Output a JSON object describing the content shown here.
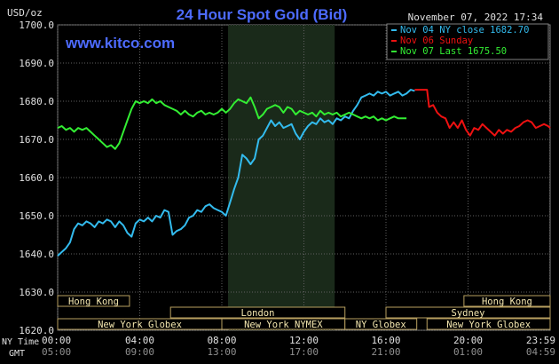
{
  "header": {
    "unit": "USD/oz",
    "title": "24 Hour Spot Gold (Bid)",
    "timestamp": "November 07, 2022 17:34",
    "site": "www.kitco.com"
  },
  "colors": {
    "background": "#000000",
    "title": "#4d6bff",
    "site": "#4d6bff",
    "grid": "#606060",
    "text": "#e0e0e0",
    "series_nov04": "#33bbee",
    "series_nov06": "#ee1111",
    "series_nov07": "#33ee33",
    "session_bar": "#f5e8b0",
    "session_border": "#b8a060",
    "nymex_shade": "#1a2a1a"
  },
  "legend": {
    "items": [
      {
        "label": "Nov 04 NY close 1682.70",
        "color": "#33bbee"
      },
      {
        "label": "Nov 06 Sunday",
        "color": "#ee1111"
      },
      {
        "label": "Nov 07 Last 1675.50",
        "color": "#33ee33"
      }
    ]
  },
  "sessions": [
    {
      "label": "Hong Kong",
      "start": 0.0,
      "end": 3.5,
      "row": 0
    },
    {
      "label": "London",
      "start": 5.5,
      "end": 14.0,
      "row": 1
    },
    {
      "label": "New York Globex",
      "start": 0.0,
      "end": 8.0,
      "row": 2
    },
    {
      "label": "New York NYMEX",
      "start": 8.0,
      "end": 14.0,
      "row": 2
    },
    {
      "label": "NY Globex",
      "start": 14.0,
      "end": 17.5,
      "row": 2
    },
    {
      "label": "Hong Kong",
      "start": 19.8,
      "end": 24.0,
      "row": 0
    },
    {
      "label": "Sydney",
      "start": 16.0,
      "end": 24.0,
      "row": 1
    },
    {
      "label": "New York Globex",
      "start": 18.0,
      "end": 24.0,
      "row": 2
    }
  ],
  "time_labels": {
    "ny_title": "NY Time",
    "gmt_title": "GMT"
  },
  "chart_data": {
    "type": "line",
    "title": "24 Hour Spot Gold (Bid)",
    "ylabel": "USD/oz",
    "ylim": [
      1620,
      1700
    ],
    "yticks": [
      "1700.0",
      "1690.0",
      "1680.0",
      "1670.0",
      "1660.0",
      "1650.0",
      "1640.0",
      "1630.0",
      "1620.0"
    ],
    "xlim": [
      0,
      24
    ],
    "xticks_ny": [
      "00:00",
      "04:00",
      "08:00",
      "12:00",
      "16:00",
      "20:00",
      "23:59"
    ],
    "xticks_gmt": [
      "05:00",
      "09:00",
      "13:00",
      "17:00",
      "21:00",
      "01:00",
      "04:59"
    ],
    "shaded_region": [
      8.3,
      13.5
    ],
    "grid": true,
    "legend_position": "top-right",
    "series": [
      {
        "name": "Nov 04 NY close 1682.70",
        "color": "#33bbee",
        "x": [
          0,
          0.2,
          0.4,
          0.6,
          0.8,
          1.0,
          1.2,
          1.4,
          1.6,
          1.8,
          2.0,
          2.2,
          2.4,
          2.6,
          2.8,
          3.0,
          3.2,
          3.4,
          3.6,
          3.8,
          4.0,
          4.2,
          4.4,
          4.6,
          4.8,
          5.0,
          5.2,
          5.4,
          5.6,
          5.8,
          6.0,
          6.2,
          6.4,
          6.6,
          6.8,
          7.0,
          7.2,
          7.4,
          7.6,
          7.8,
          8.0,
          8.2,
          8.4,
          8.6,
          8.8,
          9.0,
          9.2,
          9.4,
          9.6,
          9.8,
          10.0,
          10.2,
          10.4,
          10.6,
          10.8,
          11.0,
          11.2,
          11.4,
          11.6,
          11.8,
          12.0,
          12.2,
          12.4,
          12.6,
          12.8,
          13.0,
          13.2,
          13.4,
          13.6,
          13.8,
          14.0,
          14.2,
          14.4,
          14.6,
          14.8,
          15.0,
          15.2,
          15.4,
          15.6,
          15.8,
          16.0,
          16.2,
          16.4,
          16.6,
          16.8,
          17.0,
          17.2,
          17.4
        ],
        "values": [
          1639.5,
          1640.5,
          1641.5,
          1643.0,
          1646.5,
          1648.0,
          1647.5,
          1648.5,
          1648.0,
          1647.0,
          1648.5,
          1648.0,
          1649.0,
          1648.5,
          1647.0,
          1648.5,
          1647.5,
          1645.5,
          1644.5,
          1648.0,
          1649.0,
          1648.5,
          1649.5,
          1648.5,
          1650.0,
          1649.5,
          1651.5,
          1651.0,
          1645.0,
          1646.0,
          1646.5,
          1647.5,
          1649.5,
          1650.0,
          1651.5,
          1651.0,
          1652.5,
          1653.0,
          1652.0,
          1651.5,
          1651.0,
          1650.0,
          1653.5,
          1657.0,
          1660.0,
          1666.0,
          1665.0,
          1663.5,
          1665.0,
          1670.0,
          1671.0,
          1673.0,
          1675.0,
          1673.5,
          1674.5,
          1673.0,
          1673.5,
          1674.0,
          1671.5,
          1670.0,
          1672.0,
          1673.5,
          1674.5,
          1674.0,
          1675.5,
          1674.5,
          1675.0,
          1674.0,
          1675.5,
          1675.0,
          1676.0,
          1675.5,
          1677.5,
          1679.0,
          1681.0,
          1681.5,
          1682.0,
          1681.5,
          1682.5,
          1682.0,
          1682.5,
          1681.5,
          1682.0,
          1682.5,
          1681.5,
          1682.0,
          1683.0,
          1682.7
        ]
      },
      {
        "name": "Nov 06 Sunday",
        "color": "#ee1111",
        "x": [
          17.4,
          17.6,
          17.8,
          18.0,
          18.1,
          18.3,
          18.5,
          18.7,
          18.9,
          19.1,
          19.3,
          19.5,
          19.7,
          19.9,
          20.1,
          20.3,
          20.5,
          20.7,
          20.9,
          21.1,
          21.3,
          21.5,
          21.7,
          21.9,
          22.1,
          22.3,
          22.5,
          22.7,
          22.9,
          23.1,
          23.3,
          23.5,
          23.7,
          23.9,
          24.0
        ],
        "values": [
          1683.0,
          1683.0,
          1683.0,
          1683.0,
          1678.5,
          1679.0,
          1677.0,
          1676.0,
          1675.5,
          1673.0,
          1674.5,
          1673.0,
          1675.0,
          1672.5,
          1671.0,
          1673.0,
          1672.5,
          1674.0,
          1673.0,
          1672.0,
          1671.0,
          1672.5,
          1671.5,
          1672.5,
          1672.0,
          1673.0,
          1673.5,
          1674.5,
          1675.0,
          1674.5,
          1673.0,
          1673.5,
          1674.0,
          1673.5,
          1673.0
        ]
      },
      {
        "name": "Nov 07 Last 1675.50",
        "color": "#33ee33",
        "x": [
          0,
          0.2,
          0.4,
          0.6,
          0.8,
          1.0,
          1.2,
          1.4,
          1.6,
          1.8,
          2.0,
          2.2,
          2.4,
          2.6,
          2.8,
          3.0,
          3.2,
          3.4,
          3.6,
          3.8,
          4.0,
          4.2,
          4.4,
          4.6,
          4.8,
          5.0,
          5.2,
          5.4,
          5.6,
          5.8,
          6.0,
          6.2,
          6.4,
          6.6,
          6.8,
          7.0,
          7.2,
          7.4,
          7.6,
          7.8,
          8.0,
          8.2,
          8.4,
          8.6,
          8.8,
          9.0,
          9.2,
          9.4,
          9.6,
          9.8,
          10.0,
          10.2,
          10.4,
          10.6,
          10.8,
          11.0,
          11.2,
          11.4,
          11.6,
          11.8,
          12.0,
          12.2,
          12.4,
          12.6,
          12.8,
          13.0,
          13.2,
          13.4,
          13.6,
          13.8,
          14.0,
          14.2,
          14.4,
          14.6,
          14.8,
          15.0,
          15.2,
          15.4,
          15.6,
          15.8,
          16.0,
          16.2,
          16.4,
          16.6,
          16.8,
          17.0
        ],
        "values": [
          1673.0,
          1673.5,
          1672.5,
          1673.0,
          1672.0,
          1673.0,
          1672.5,
          1673.0,
          1672.0,
          1671.0,
          1670.0,
          1669.0,
          1668.0,
          1668.5,
          1667.5,
          1669.0,
          1672.0,
          1675.0,
          1678.0,
          1680.0,
          1679.5,
          1680.0,
          1679.5,
          1680.5,
          1679.5,
          1680.0,
          1679.0,
          1678.5,
          1678.0,
          1677.5,
          1676.5,
          1677.5,
          1676.5,
          1676.0,
          1677.0,
          1677.5,
          1676.5,
          1677.0,
          1676.5,
          1677.0,
          1678.0,
          1677.0,
          1678.0,
          1679.5,
          1680.5,
          1680.0,
          1679.5,
          1681.0,
          1678.5,
          1675.5,
          1676.5,
          1678.0,
          1678.5,
          1679.0,
          1678.5,
          1677.0,
          1678.5,
          1678.0,
          1676.5,
          1677.5,
          1677.0,
          1676.5,
          1677.0,
          1676.0,
          1677.5,
          1676.5,
          1677.0,
          1676.5,
          1677.0,
          1676.0,
          1676.5,
          1677.0,
          1676.5,
          1676.0,
          1675.5,
          1676.0,
          1675.5,
          1676.0,
          1675.0,
          1675.5,
          1675.0,
          1675.5,
          1676.0,
          1675.5,
          1675.5,
          1675.5
        ]
      }
    ]
  }
}
